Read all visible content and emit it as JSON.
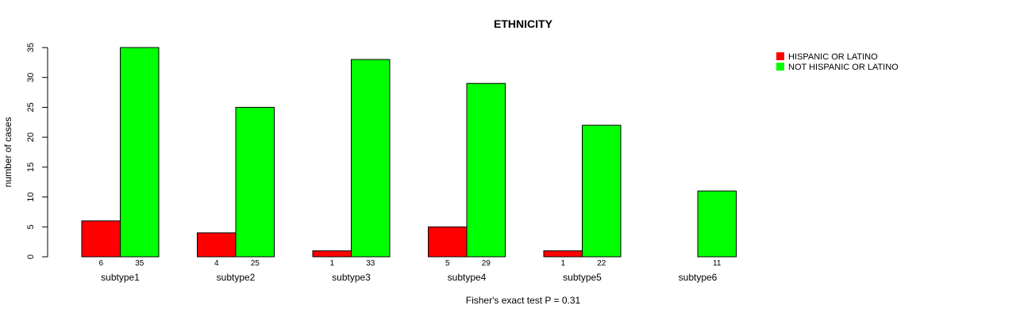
{
  "chart_data": {
    "type": "bar",
    "title": "ETHNICITY",
    "xlabel": "Fisher's exact test P = 0.31",
    "ylabel": "number of cases",
    "ylim": [
      0,
      35
    ],
    "yticks": [
      0,
      5,
      10,
      15,
      20,
      25,
      30,
      35
    ],
    "yticks_text": [
      "0",
      "5",
      "10",
      "15",
      "20",
      "25",
      "30",
      "35"
    ],
    "categories": [
      "subtype1",
      "subtype2",
      "subtype3",
      "subtype4",
      "subtype5",
      "subtype6"
    ],
    "series": [
      {
        "name": "HISPANIC OR LATINO",
        "color": "#ff0000",
        "values": [
          6,
          4,
          1,
          5,
          1,
          0
        ],
        "labels": [
          "6",
          "4",
          "1",
          "5",
          "1",
          ""
        ]
      },
      {
        "name": "NOT HISPANIC OR LATINO",
        "color": "#00ff00",
        "values": [
          35,
          25,
          33,
          29,
          22,
          11
        ],
        "labels": [
          "35",
          "25",
          "33",
          "29",
          "22",
          "11"
        ]
      }
    ],
    "legend_position": "top-right"
  }
}
